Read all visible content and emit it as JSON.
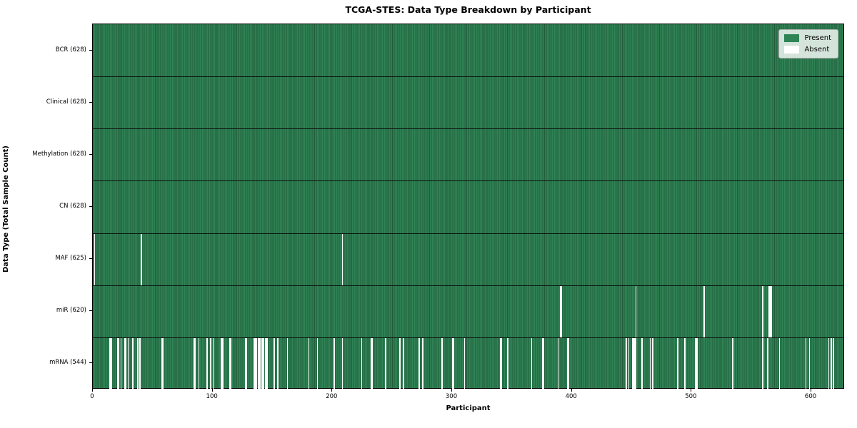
{
  "chart_data": {
    "type": "heatmap",
    "title": "TCGA-STES: Data Type Breakdown by Participant",
    "xlabel": "Participant",
    "ylabel": "Data Type (Total Sample Count)",
    "x_ticks": [
      0,
      100,
      200,
      300,
      400,
      500,
      600
    ],
    "x_range": [
      0,
      628
    ],
    "n_participants": 628,
    "grid": false,
    "legend_position": "upper-right",
    "colors": {
      "present": "#2f8355",
      "present_edge": "#215c3a",
      "absent": "#ffffff",
      "row_separator": "#0a0a0a",
      "axis": "#000000",
      "legend_bg": "#e9eee9",
      "legend_border": "#b0b0b0"
    },
    "legend": [
      {
        "label": "Present",
        "color": "#2f8355"
      },
      {
        "label": "Absent",
        "color": "#ffffff"
      }
    ],
    "rows": [
      {
        "label": "BCR (628)",
        "data_type": "BCR",
        "sample_count": 628,
        "absent_participants": []
      },
      {
        "label": "Clinical (628)",
        "data_type": "Clinical",
        "sample_count": 628,
        "absent_participants": []
      },
      {
        "label": "Methylation (628)",
        "data_type": "Methylation",
        "sample_count": 628,
        "absent_participants": []
      },
      {
        "label": "CN (628)",
        "data_type": "CN",
        "sample_count": 628,
        "absent_participants": []
      },
      {
        "label": "MAF (625)",
        "data_type": "MAF",
        "sample_count": 625,
        "absent_participants": [
          1,
          40,
          208
        ]
      },
      {
        "label": "miR (620)",
        "data_type": "miR",
        "sample_count": 620,
        "absent_participants": [
          390,
          391,
          453,
          510,
          559,
          564,
          565,
          566
        ]
      },
      {
        "label": "mRNA (544)",
        "data_type": "mRNA",
        "sample_count": 544,
        "absent_participants": [
          14,
          15,
          20,
          21,
          23,
          26,
          27,
          29,
          33,
          37,
          39,
          57,
          58,
          84,
          85,
          88,
          95,
          98,
          100,
          107,
          108,
          114,
          115,
          127,
          128,
          134,
          135,
          136,
          138,
          139,
          141,
          142,
          144,
          145,
          151,
          154,
          162,
          180,
          187,
          201,
          208,
          224,
          232,
          233,
          244,
          256,
          259,
          272,
          275,
          291,
          300,
          301,
          310,
          340,
          341,
          346,
          366,
          375,
          376,
          388,
          396,
          397,
          445,
          447,
          450,
          451,
          452,
          453,
          458,
          465,
          467,
          488,
          494,
          503,
          504,
          534,
          559,
          563,
          573,
          595,
          598,
          614,
          616,
          618
        ]
      }
    ]
  }
}
